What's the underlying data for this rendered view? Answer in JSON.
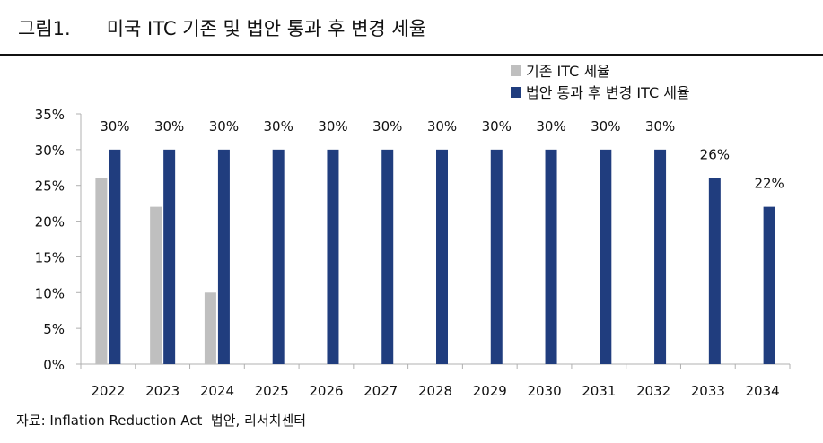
{
  "header": {
    "figure_title": "그림1.      미국 ITC 기존 및 법안 통과 후 변경 세율"
  },
  "source_note": "자료: Inflation Reduction Act  법안, 리서치센터",
  "colors": {
    "existing": "#bfbfbf",
    "changed": "#203d7e",
    "axis": "#b0b0b0"
  },
  "chart_data": {
    "type": "bar",
    "categories": [
      "2022",
      "2023",
      "2024",
      "2025",
      "2026",
      "2027",
      "2028",
      "2029",
      "2030",
      "2031",
      "2032",
      "2033",
      "2034"
    ],
    "series": [
      {
        "name": "기존 ITC 세율",
        "values": [
          26,
          22,
          10,
          null,
          null,
          null,
          null,
          null,
          null,
          null,
          null,
          null,
          null
        ]
      },
      {
        "name": "법안 통과 후 변경 ITC 세율",
        "values": [
          30,
          30,
          30,
          30,
          30,
          30,
          30,
          30,
          30,
          30,
          30,
          26,
          22
        ]
      }
    ],
    "data_labels": [
      "30%",
      "30%",
      "30%",
      "30%",
      "30%",
      "30%",
      "30%",
      "30%",
      "30%",
      "30%",
      "30%",
      "26%",
      "22%"
    ],
    "yticks": [
      "0%",
      "5%",
      "10%",
      "15%",
      "20%",
      "25%",
      "30%",
      "35%"
    ],
    "ylim": [
      0,
      35
    ],
    "legend_position": "top-right",
    "grid": false
  }
}
